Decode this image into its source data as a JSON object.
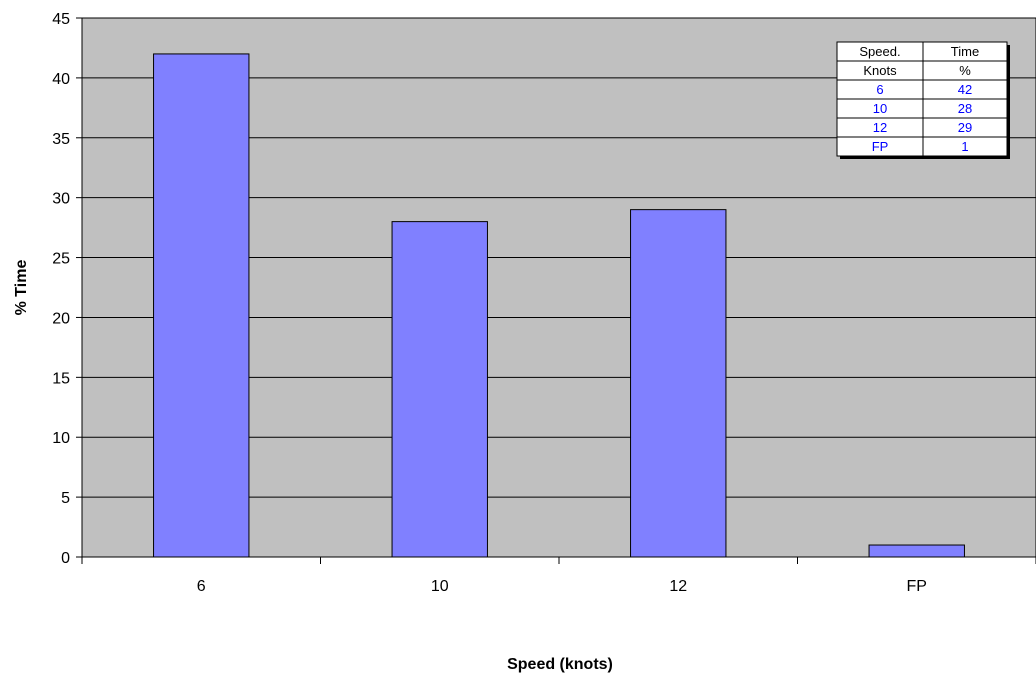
{
  "chart_data": {
    "type": "bar",
    "categories": [
      "6",
      "10",
      "12",
      "FP"
    ],
    "values": [
      42,
      28,
      29,
      1
    ],
    "xlabel": "Speed (knots)",
    "ylabel": "% Time",
    "ylim": [
      0,
      45
    ],
    "yticks": [
      0,
      5,
      10,
      15,
      20,
      25,
      30,
      35,
      40,
      45
    ],
    "grid": true,
    "colors": {
      "bar": "#8080ff",
      "plot_bg": "#c0c0c0",
      "table_values": "#0000ff"
    },
    "data_table": {
      "headers": [
        [
          "Speed.",
          "Time"
        ],
        [
          "Knots",
          "%"
        ]
      ],
      "rows": [
        [
          "6",
          "42"
        ],
        [
          "10",
          "28"
        ],
        [
          "12",
          "29"
        ],
        [
          "FP",
          "1"
        ]
      ],
      "placement": "top-right"
    }
  }
}
